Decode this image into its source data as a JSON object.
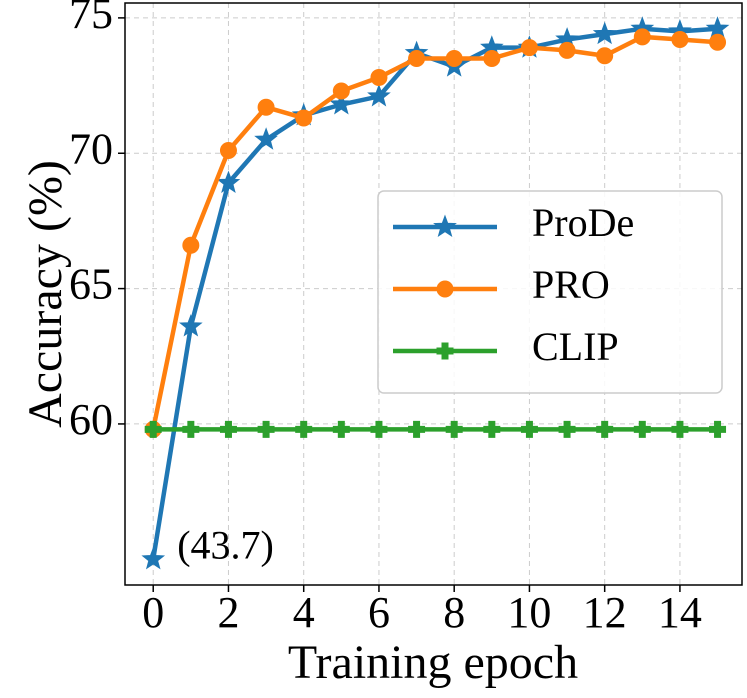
{
  "chart_data": {
    "type": "line",
    "x_label": "Training epoch",
    "y_label": "Accuracy (%)",
    "x": [
      0,
      1,
      2,
      3,
      4,
      5,
      6,
      7,
      8,
      9,
      10,
      11,
      12,
      13,
      14,
      15
    ],
    "series": [
      {
        "name": "ProDe",
        "color": "#1f77b4",
        "marker": "star",
        "values": [
          55,
          63.6,
          68.9,
          70.5,
          71.4,
          71.8,
          72.1,
          73.7,
          73.2,
          73.9,
          73.9,
          74.2,
          74.4,
          74.6,
          74.5,
          74.6
        ]
      },
      {
        "name": "PRO",
        "color": "#ff7f0e",
        "marker": "circle",
        "values": [
          59.8,
          66.6,
          70.1,
          71.7,
          71.3,
          72.3,
          72.8,
          73.5,
          73.5,
          73.5,
          73.9,
          73.8,
          73.6,
          74.3,
          74.2,
          74.1
        ]
      },
      {
        "name": "CLIP",
        "color": "#2ca02c",
        "marker": "plus",
        "values": [
          59.8,
          59.8,
          59.8,
          59.8,
          59.8,
          59.8,
          59.8,
          59.8,
          59.8,
          59.8,
          59.8,
          59.8,
          59.8,
          59.8,
          59.8,
          59.8
        ]
      }
    ],
    "annotation": "(43.7)",
    "xlim": [
      -0.75,
      15.65
    ],
    "ylim": [
      54.05,
      75.55
    ],
    "xticks": [
      0,
      2,
      4,
      6,
      8,
      10,
      12,
      14
    ],
    "yticks": [
      60,
      65,
      70,
      75
    ],
    "grid": true,
    "legend_position": "right"
  }
}
